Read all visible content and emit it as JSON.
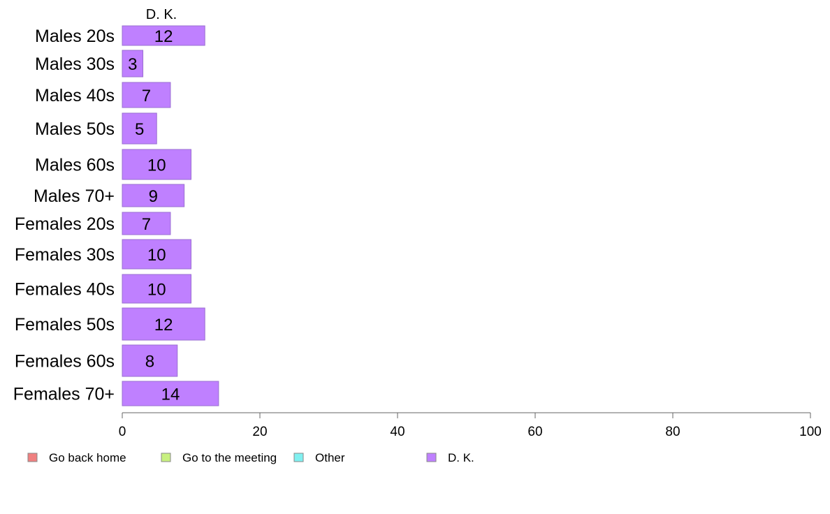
{
  "chart_data": {
    "type": "bar",
    "orientation": "horizontal",
    "stacked": true,
    "categories": [
      "Males 20s",
      "Males 30s",
      "Males 40s",
      "Males 50s",
      "Males 60s",
      "Males 70+",
      "Females 20s",
      "Females 30s",
      "Females 40s",
      "Females 50s",
      "Females 60s",
      "Females 70+"
    ],
    "series": [
      {
        "name": "Go back home",
        "color": "#f08080",
        "values": [
          0,
          0,
          0,
          0,
          0,
          0,
          0,
          0,
          0,
          0,
          0,
          0
        ]
      },
      {
        "name": "Go to the meeting",
        "color": "#c8f080",
        "values": [
          0,
          0,
          0,
          0,
          0,
          0,
          0,
          0,
          0,
          0,
          0,
          0
        ]
      },
      {
        "name": "Other",
        "color": "#80f0f0",
        "values": [
          0,
          0,
          0,
          0,
          0,
          0,
          0,
          0,
          0,
          0,
          0,
          0
        ]
      },
      {
        "name": "D. K.",
        "color": "#bf80ff",
        "values": [
          12,
          3,
          7,
          5,
          10,
          9,
          7,
          10,
          10,
          12,
          8,
          14
        ]
      }
    ],
    "bar_value_labels": [
      "12",
      "3",
      "7",
      "5",
      "10",
      "9",
      "7",
      "10",
      "10",
      "12",
      "8",
      "14"
    ],
    "top_label": "D. K.",
    "xlim": [
      0,
      100
    ],
    "xticks": [
      "0",
      "20",
      "40",
      "60",
      "80",
      "100"
    ],
    "title": "",
    "xlabel": "",
    "ylabel": "",
    "grid": false,
    "legend_placement": "bottom"
  }
}
